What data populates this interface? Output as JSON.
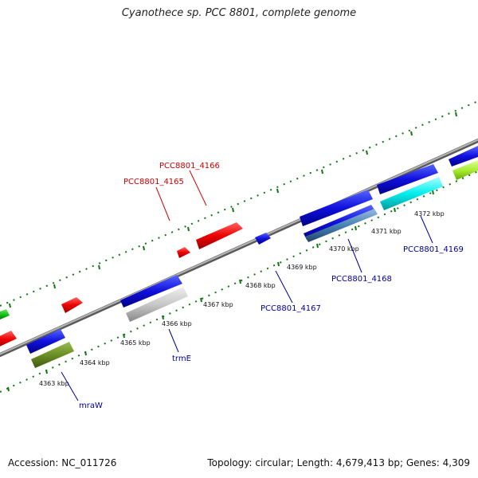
{
  "title": "Cyanothece sp. PCC 8801, complete genome",
  "footer": {
    "accession": "Accession: NC_011726",
    "summary": "Topology: circular; Length: 4,679,413 bp; Genes: 4,309"
  },
  "colors": {
    "backbone": "#888888",
    "tick": "#117711",
    "forward_label": "#cc0000",
    "reverse_label": "#000099"
  },
  "kbp_labels": [
    "4363 kbp",
    "4364 kbp",
    "4365 kbp",
    "4366 kbp",
    "4367 kbp",
    "4368 kbp",
    "4369 kbp",
    "4370 kbp",
    "4371 kbp",
    "4372 kbp"
  ],
  "gene_labels": [
    {
      "name": "PCC8801_4166",
      "color": "#cc0000"
    },
    {
      "name": "PCC8801_4165",
      "color": "#cc0000"
    },
    {
      "name": "PCC8801_4169",
      "color": "#000099"
    },
    {
      "name": "PCC8801_4168",
      "color": "#000099"
    },
    {
      "name": "PCC8801_4167",
      "color": "#000099"
    },
    {
      "name": "trmE",
      "color": "#000099"
    },
    {
      "name": "mraW",
      "color": "#000099"
    }
  ]
}
